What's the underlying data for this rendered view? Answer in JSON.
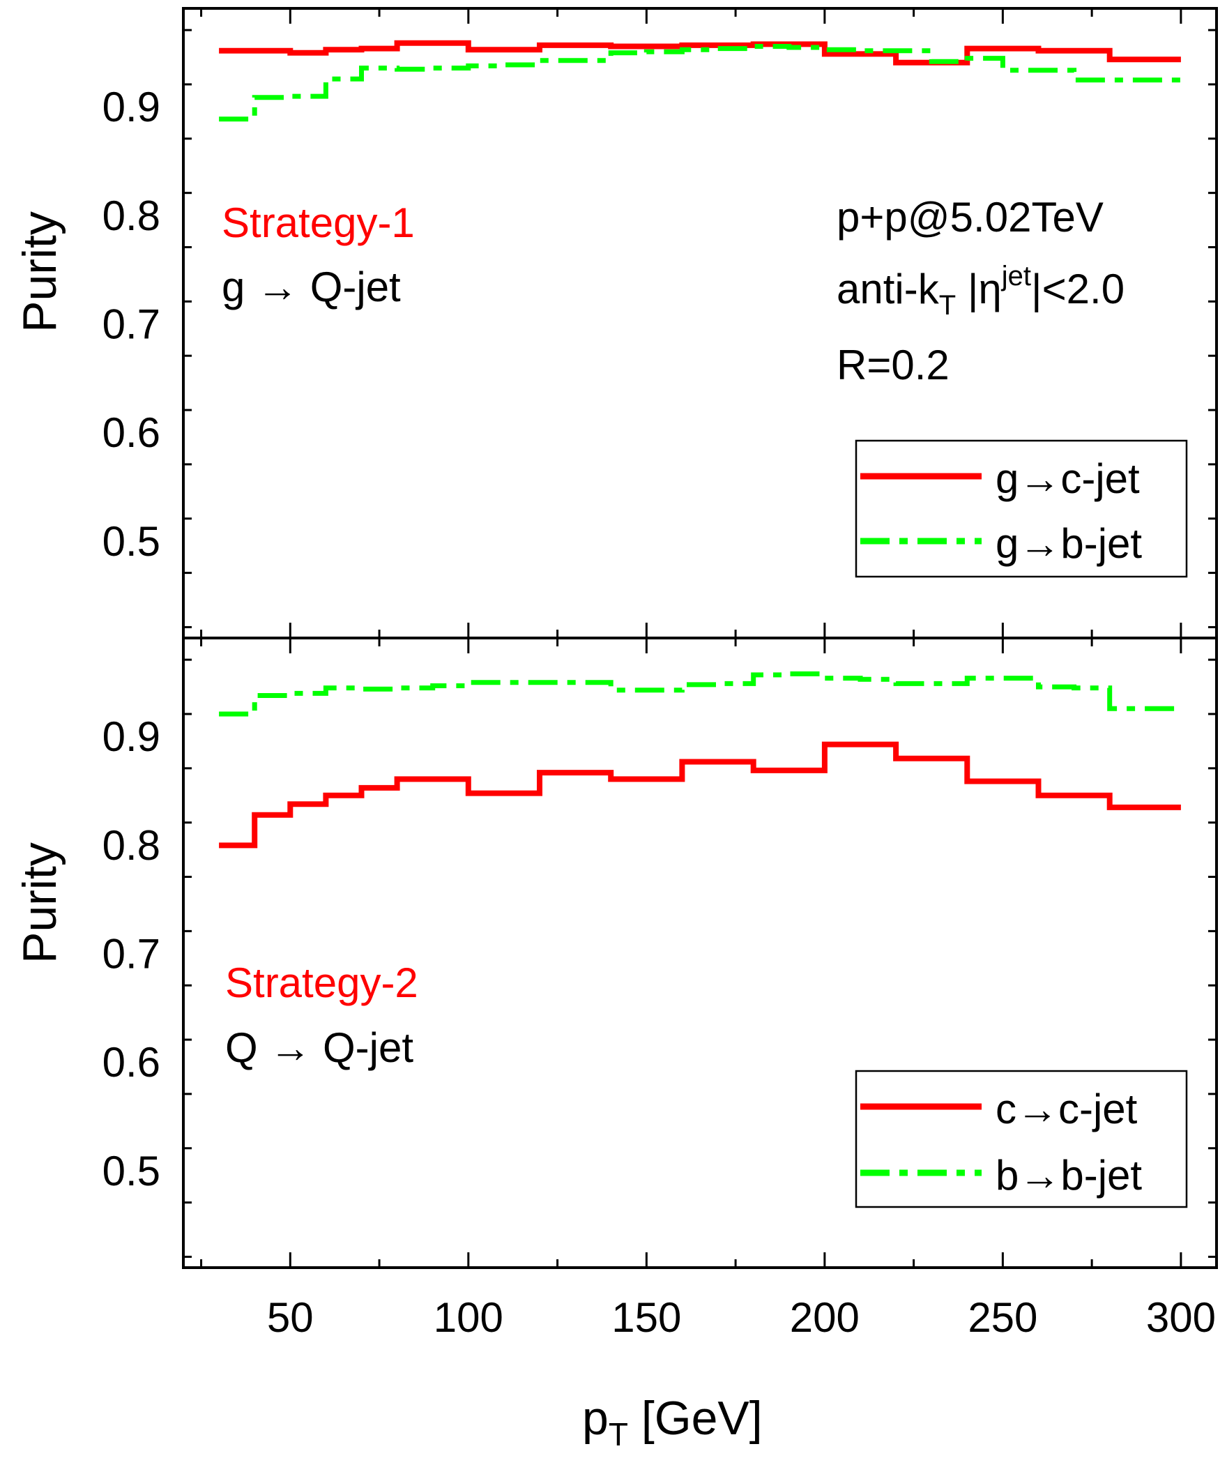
{
  "colors": {
    "c_line": "#ff0000",
    "b_line": "#00ff00",
    "strategy_label": "#ff0000",
    "text": "#000000"
  },
  "x_axis": {
    "label_main": "p",
    "label_sub": "T",
    "label_tail": " [GeV]",
    "range": [
      20,
      310
    ],
    "ticks": [
      50,
      100,
      150,
      200,
      250,
      300
    ],
    "tick_labels": [
      "50",
      "100",
      "150",
      "200",
      "250",
      "300"
    ]
  },
  "chart_data": [
    {
      "type": "line",
      "step": true,
      "title": "",
      "ylabel": "Purity",
      "ylim": [
        0.41,
        0.99
      ],
      "yticks": [
        0.5,
        0.6,
        0.7,
        0.8,
        0.9
      ],
      "ytick_labels": [
        "0.5",
        "0.6",
        "0.7",
        "0.8",
        "0.9"
      ],
      "strategy_label": "Strategy-1",
      "process_label": "g → Q-jet",
      "annotation": {
        "line1": "p+p@5.02TeV",
        "line2_a": "anti-k",
        "line2_sub": "T",
        "line2_b": " |η",
        "line2_sup": "jet",
        "line2_c": "|<2.0",
        "line3": "R=0.2"
      },
      "x_edges": [
        30,
        40,
        50,
        60,
        70,
        80,
        90,
        100,
        110,
        120,
        130,
        140,
        150,
        160,
        170,
        180,
        190,
        200,
        210,
        220,
        230,
        240,
        250,
        260,
        270,
        280,
        290,
        300
      ],
      "series": [
        {
          "name": "g→c-jet",
          "style": "solid",
          "color": "#ff0000",
          "values": [
            0.951,
            0.951,
            0.949,
            0.952,
            0.953,
            0.958,
            0.958,
            0.952,
            0.952,
            0.956,
            0.956,
            0.955,
            0.955,
            0.956,
            0.956,
            0.957,
            0.957,
            0.948,
            0.948,
            0.94,
            0.94,
            0.953,
            0.953,
            0.951,
            0.951,
            0.943,
            0.943
          ]
        },
        {
          "name": "g→b-jet",
          "style": "dashdot",
          "color": "#00ff00",
          "values": [
            0.888,
            0.908,
            0.909,
            0.925,
            0.935,
            0.934,
            0.935,
            0.937,
            0.938,
            0.942,
            0.942,
            0.949,
            0.95,
            0.952,
            0.953,
            0.955,
            0.954,
            0.952,
            0.951,
            0.951,
            0.941,
            0.944,
            0.933,
            0.933,
            0.924,
            0.924,
            0.924
          ]
        }
      ]
    },
    {
      "type": "line",
      "step": true,
      "title": "",
      "ylabel": "Purity",
      "ylim": [
        0.41,
        0.99
      ],
      "yticks": [
        0.5,
        0.6,
        0.7,
        0.8,
        0.9
      ],
      "ytick_labels": [
        "0.5",
        "0.6",
        "0.7",
        "0.8",
        "0.9"
      ],
      "strategy_label": "Strategy-2",
      "process_label": "Q → Q-jet",
      "x_edges": [
        30,
        40,
        50,
        60,
        70,
        80,
        90,
        100,
        110,
        120,
        130,
        140,
        150,
        160,
        170,
        180,
        190,
        200,
        210,
        220,
        230,
        240,
        250,
        260,
        270,
        280,
        290,
        300
      ],
      "series": [
        {
          "name": "c→c-jet",
          "style": "solid",
          "color": "#ff0000",
          "values": [
            0.799,
            0.827,
            0.837,
            0.845,
            0.852,
            0.86,
            0.86,
            0.847,
            0.847,
            0.866,
            0.866,
            0.86,
            0.86,
            0.876,
            0.876,
            0.868,
            0.868,
            0.892,
            0.892,
            0.879,
            0.879,
            0.858,
            0.858,
            0.845,
            0.845,
            0.834,
            0.834
          ]
        },
        {
          "name": "b→b-jet",
          "style": "dashdot",
          "color": "#00ff00",
          "values": [
            0.92,
            0.937,
            0.939,
            0.944,
            0.943,
            0.944,
            0.946,
            0.949,
            0.949,
            0.949,
            0.949,
            0.942,
            0.942,
            0.947,
            0.948,
            0.956,
            0.957,
            0.953,
            0.952,
            0.948,
            0.948,
            0.953,
            0.953,
            0.945,
            0.944,
            0.925,
            0.925
          ]
        }
      ]
    }
  ]
}
